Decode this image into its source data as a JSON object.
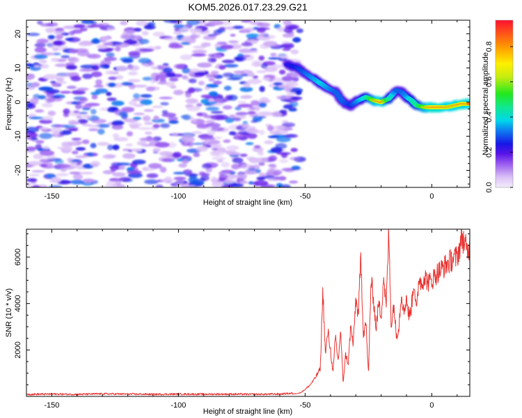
{
  "title": "KOM5.2026.017.23.29.G21",
  "colors": {
    "frame": "#000000",
    "snr_line": "#e8322f",
    "background": "#ffffff"
  },
  "chart_data": [
    {
      "type": "heatmap",
      "name": "spectrogram",
      "xlabel": "Height of straight line (km)",
      "ylabel": "Frequency (Hz)",
      "xlim": [
        -160,
        15
      ],
      "ylim": [
        -25,
        24
      ],
      "xticks": [
        -150,
        -100,
        -50,
        0
      ],
      "yticks": [
        -20,
        -10,
        0,
        10,
        20
      ],
      "colorbar": {
        "label": "Normalized spectral amplitude",
        "range": [
          0,
          0.95
        ],
        "ticks": [
          0.0,
          0.2,
          0.4,
          0.6,
          0.8
        ],
        "tick_labels": [
          "0.0",
          "0.2",
          "0.4",
          "0.6",
          "0.8"
        ]
      },
      "noise_region": {
        "x_range": [
          -160,
          -52
        ],
        "typical_amplitude": [
          0.05,
          0.25
        ]
      },
      "signal_ridge": {
        "x": [
          -57,
          -53,
          -50,
          -47,
          -44,
          -41,
          -38,
          -35,
          -32,
          -29,
          -26,
          -23,
          -20,
          -17,
          -14,
          -12,
          -10,
          -8,
          -6,
          -3,
          0,
          3,
          6,
          9,
          12,
          15
        ],
        "frequency": [
          11,
          10,
          8.5,
          7,
          5.5,
          4,
          3,
          0,
          -1,
          0.5,
          1.5,
          0.5,
          0,
          1,
          3.5,
          3,
          1.5,
          0.5,
          -1,
          -1.5,
          -1.5,
          -1.5,
          -1.5,
          -1,
          -0.5,
          -0.5
        ],
        "amplitude": [
          0.3,
          0.35,
          0.4,
          0.45,
          0.5,
          0.45,
          0.4,
          0.4,
          0.35,
          0.45,
          0.55,
          0.75,
          0.9,
          0.6,
          0.4,
          0.4,
          0.45,
          0.55,
          0.6,
          0.75,
          0.9,
          0.9,
          0.85,
          0.85,
          0.9,
          0.85
        ]
      }
    },
    {
      "type": "line",
      "name": "snr",
      "xlabel": "Height of straight line (km)",
      "ylabel": "SNR (10 * v/v)",
      "xlim": [
        -160,
        15
      ],
      "ylim": [
        0,
        7200
      ],
      "xticks": [
        -150,
        -100,
        -50,
        0
      ],
      "yticks": [
        2000,
        4000,
        6000
      ],
      "series": [
        {
          "name": "SNR",
          "x": [
            -160,
            -150,
            -140,
            -130,
            -120,
            -110,
            -100,
            -90,
            -80,
            -70,
            -60,
            -55,
            -52,
            -50,
            -48,
            -46,
            -44,
            -43,
            -42,
            -41,
            -40,
            -39,
            -38,
            -37,
            -36,
            -35,
            -34,
            -33,
            -32,
            -31,
            -30,
            -29,
            -28,
            -27,
            -26,
            -25,
            -24,
            -23,
            -22,
            -21,
            -20,
            -19,
            -18,
            -17,
            -16,
            -15,
            -14,
            -13,
            -12,
            -11,
            -10,
            -9,
            -8,
            -7,
            -6,
            -5,
            -4,
            -3,
            -2,
            -1,
            0,
            2,
            4,
            6,
            8,
            10,
            12,
            14,
            15
          ],
          "y": [
            50,
            60,
            50,
            70,
            60,
            50,
            60,
            55,
            60,
            50,
            60,
            100,
            150,
            300,
            500,
            800,
            1200,
            4600,
            1800,
            2800,
            2000,
            1000,
            2600,
            1500,
            2800,
            600,
            1800,
            1400,
            3000,
            2200,
            4200,
            3500,
            6000,
            2700,
            3200,
            900,
            5000,
            4200,
            2900,
            4000,
            3500,
            5200,
            3800,
            7100,
            3000,
            4000,
            2600,
            3000,
            4500,
            3600,
            4300,
            3400,
            3900,
            5000,
            3600,
            5200,
            4800,
            5200,
            5000,
            4900,
            5000,
            5300,
            5500,
            5700,
            5900,
            6000,
            6900,
            6200,
            6500
          ]
        }
      ]
    }
  ]
}
